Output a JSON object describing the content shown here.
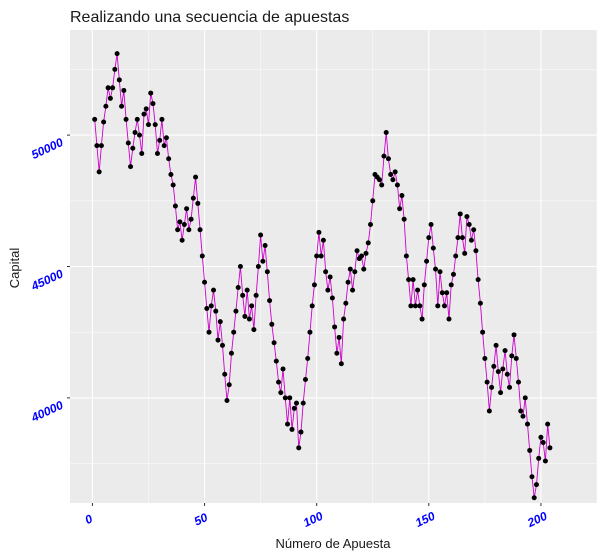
{
  "chart_data": {
    "type": "line",
    "title": "Realizando una secuencia de apuestas",
    "xlabel": "Número de Apuesta",
    "ylabel": "Capital",
    "xlim": [
      -10,
      225
    ],
    "ylim": [
      36000,
      54000
    ],
    "x_ticks": [
      0,
      50,
      100,
      150,
      200
    ],
    "y_ticks": [
      40000,
      45000,
      50000
    ],
    "x_tick_labels": [
      "0",
      "50",
      "100",
      "150",
      "200"
    ],
    "y_tick_labels": [
      "40000",
      "45000",
      "50000"
    ],
    "grid": true,
    "legend": "none",
    "colors": {
      "line": "#cc00cc",
      "point": "#000000",
      "panel": "#ebebeb",
      "grid": "#ffffff",
      "tick_label": "#0000ff"
    },
    "series": [
      {
        "values": [
          50600,
          49600,
          48600,
          49600,
          50500,
          51100,
          51800,
          51400,
          51800,
          52500,
          53100,
          52100,
          51100,
          51700,
          50600,
          49700,
          48800,
          49500,
          50100,
          50600,
          50000,
          49300,
          50800,
          51000,
          50400,
          51600,
          51200,
          50400,
          49300,
          49800,
          50600,
          49600,
          49900,
          49100,
          48500,
          48100,
          47300,
          46400,
          46700,
          46000,
          46600,
          47200,
          46400,
          46800,
          47600,
          48400,
          47400,
          46400,
          45400,
          44400,
          43400,
          42500,
          43500,
          44100,
          43300,
          42200,
          42900,
          42000,
          40900,
          39900,
          40500,
          41700,
          42500,
          43300,
          44200,
          45000,
          43900,
          43100,
          44100,
          43000,
          43500,
          42600,
          43900,
          45000,
          46200,
          45200,
          45800,
          44800,
          43700,
          42800,
          42100,
          41400,
          40600,
          40200,
          41100,
          40000,
          39000,
          40000,
          38800,
          39600,
          39800,
          38100,
          38700,
          39800,
          40700,
          41500,
          42500,
          43500,
          44300,
          45400,
          46300,
          45400,
          46000,
          44800,
          44100,
          44600,
          43800,
          42700,
          41700,
          42300,
          41300,
          43000,
          43600,
          44400,
          44900,
          44100,
          44800,
          45600,
          45300,
          45400,
          44900,
          45500,
          45900,
          46600,
          47500,
          48500,
          48400,
          48300,
          48100,
          49200,
          50100,
          49100,
          48500,
          48300,
          48600,
          48100,
          47200,
          47700,
          46800,
          45400,
          44500,
          43500,
          44500,
          43500,
          44100,
          43500,
          43000,
          44300,
          45200,
          46100,
          46600,
          45700,
          44900,
          43500,
          44800,
          44000,
          43500,
          44000,
          43000,
          44300,
          44700,
          45400,
          46100,
          47000,
          46100,
          45500,
          46900,
          46600,
          46000,
          46400,
          45600,
          44500,
          43600,
          42500,
          41500,
          40600,
          39500,
          40400,
          41200,
          42000,
          41000,
          40200,
          41100,
          41800,
          40900,
          40400,
          41600,
          42400,
          41500,
          40600,
          39500,
          39300,
          40000,
          39000,
          38000,
          37000,
          36200,
          36700,
          37700,
          38500,
          38300,
          37600,
          39000,
          38100
        ]
      }
    ]
  }
}
